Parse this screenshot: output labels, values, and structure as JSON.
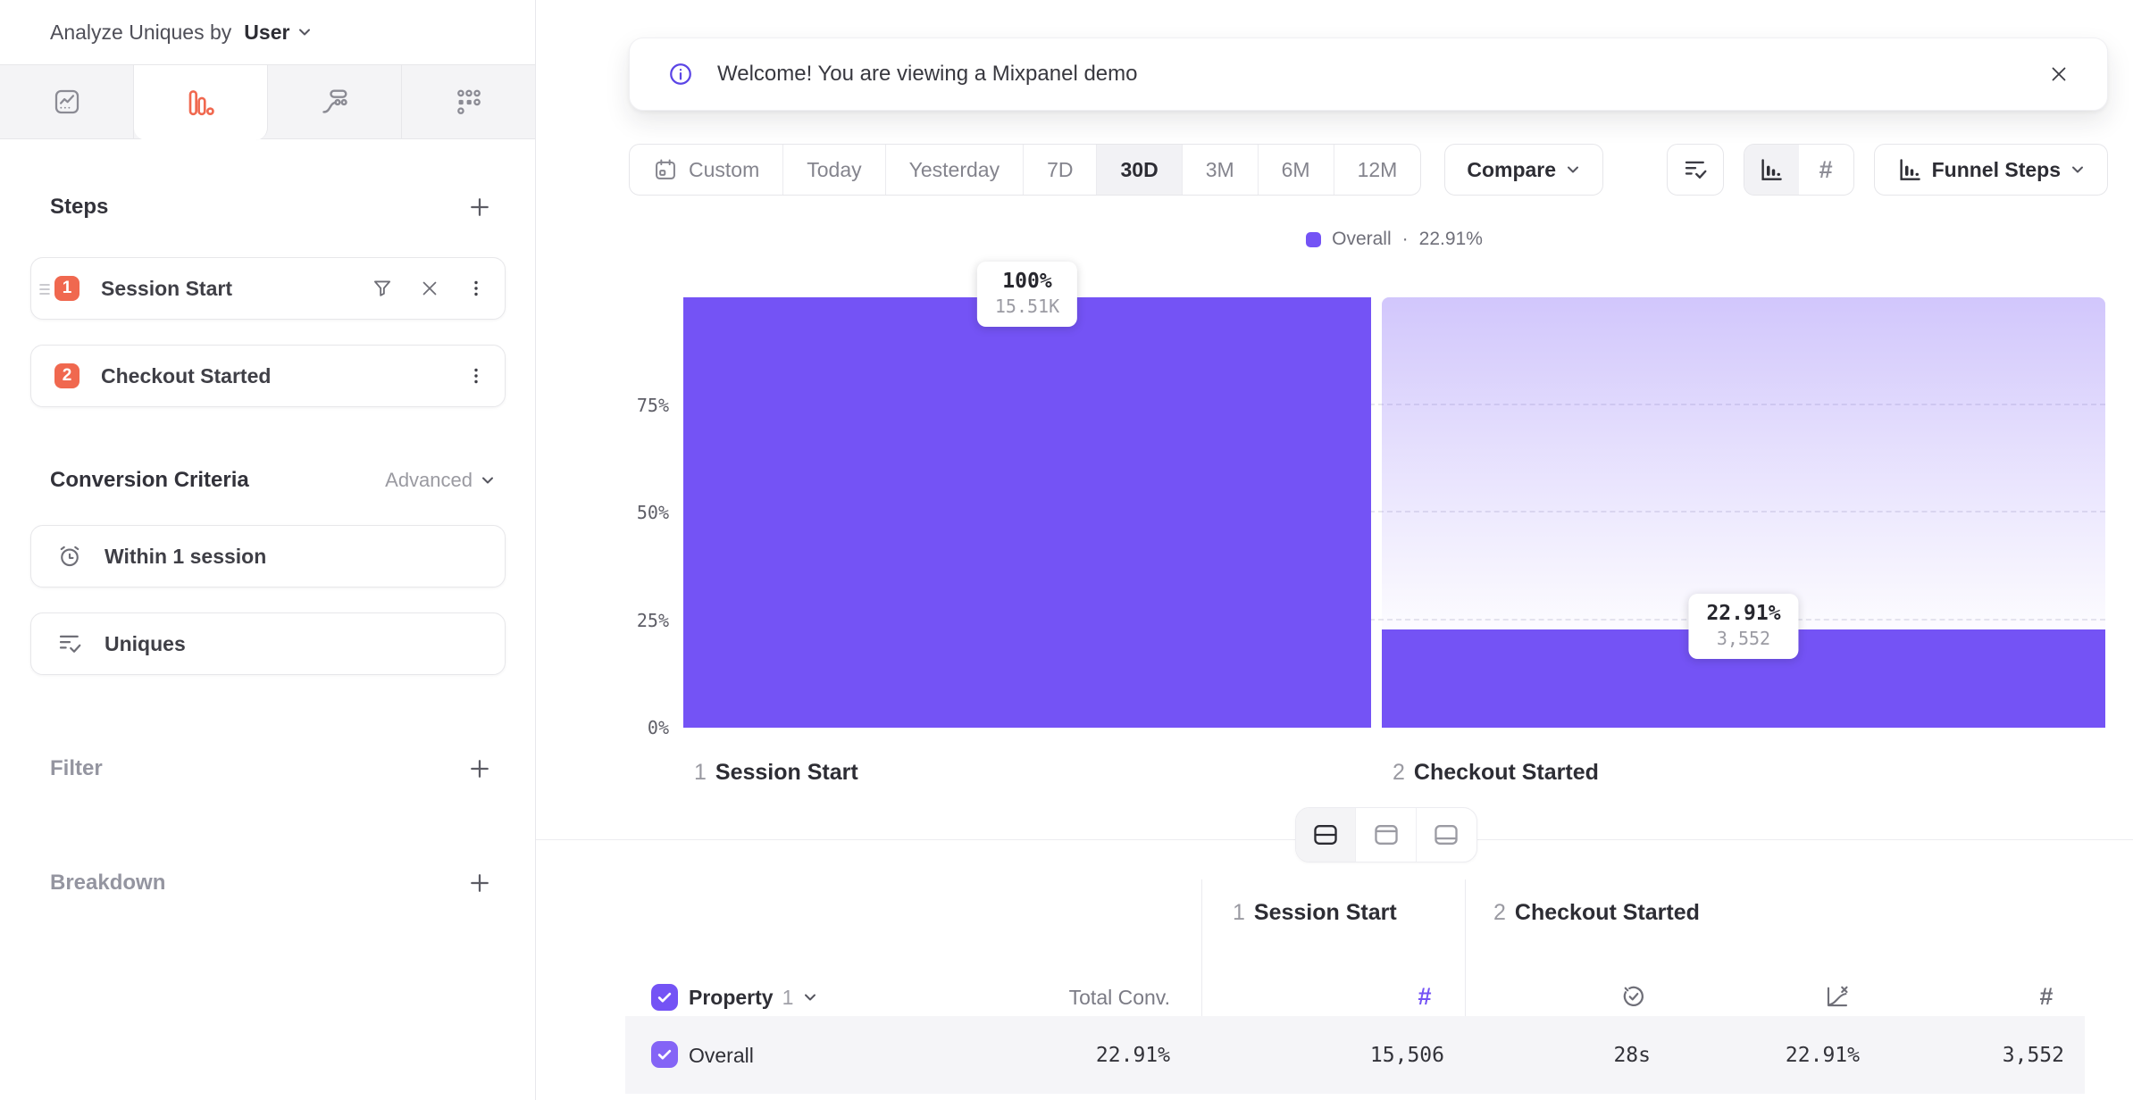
{
  "sidebar": {
    "header": {
      "label": "Analyze Uniques by",
      "value": "User"
    },
    "tabs": [
      {
        "name": "insights",
        "active": false
      },
      {
        "name": "funnels",
        "active": true
      },
      {
        "name": "flows",
        "active": false
      },
      {
        "name": "retention",
        "active": false
      }
    ],
    "steps": {
      "title": "Steps",
      "items": [
        {
          "index": "1",
          "label": "Session Start"
        },
        {
          "index": "2",
          "label": "Checkout Started"
        }
      ]
    },
    "conversion_criteria": {
      "title": "Conversion Criteria",
      "advanced_label": "Advanced",
      "window_label": "Within 1 session",
      "counting_label": "Uniques"
    },
    "filter_label": "Filter",
    "breakdown_label": "Breakdown"
  },
  "banner": {
    "message": "Welcome! You are viewing a Mixpanel demo"
  },
  "toolbar": {
    "date_presets": [
      {
        "label": "Custom",
        "selected": false
      },
      {
        "label": "Today",
        "selected": false
      },
      {
        "label": "Yesterday",
        "selected": false
      },
      {
        "label": "7D",
        "selected": false
      },
      {
        "label": "30D",
        "selected": true
      },
      {
        "label": "3M",
        "selected": false
      },
      {
        "label": "6M",
        "selected": false
      },
      {
        "label": "12M",
        "selected": false
      }
    ],
    "compare_label": "Compare",
    "view_selector_label": "Funnel Steps",
    "count_toggle_label": "#"
  },
  "legend": {
    "series": "Overall",
    "separator": "·",
    "value": "22.91%",
    "color": "#7453f5"
  },
  "chart_data": {
    "type": "bar",
    "subtype": "funnel-steps",
    "title": "",
    "categories": [
      "Session Start",
      "Checkout Started"
    ],
    "values_pct": [
      100,
      22.91
    ],
    "counts": [
      15506,
      3552
    ],
    "steps": [
      {
        "index": "1",
        "label": "Session Start",
        "pct": 100,
        "pct_label": "100%",
        "count_label": "15.51K"
      },
      {
        "index": "2",
        "label": "Checkout Started",
        "pct": 22.91,
        "pct_label": "22.91%",
        "count_label": "3,552"
      }
    ],
    "y_ticks": [
      {
        "label": "75%",
        "pct": 75
      },
      {
        "label": "50%",
        "pct": 50
      },
      {
        "label": "25%",
        "pct": 25
      },
      {
        "label": "0%",
        "pct": 0
      }
    ],
    "ylim": [
      0,
      100
    ],
    "bar_color": "#7453f5",
    "grid": "dashed-horizontal",
    "legend_position": "top-center"
  },
  "table": {
    "header": {
      "property_label": "Property",
      "property_index": "1",
      "total_conv_label": "Total Conv.",
      "count_symbol": "#",
      "groups": [
        {
          "index": "1",
          "label": "Session Start"
        },
        {
          "index": "2",
          "label": "Checkout Started"
        }
      ]
    },
    "rows": [
      {
        "name": "Overall",
        "total_conv": "22.91%",
        "step1_count": "15,506",
        "avg_time": "28s",
        "conv_rate": "22.91%",
        "step2_count": "3,552"
      }
    ]
  }
}
